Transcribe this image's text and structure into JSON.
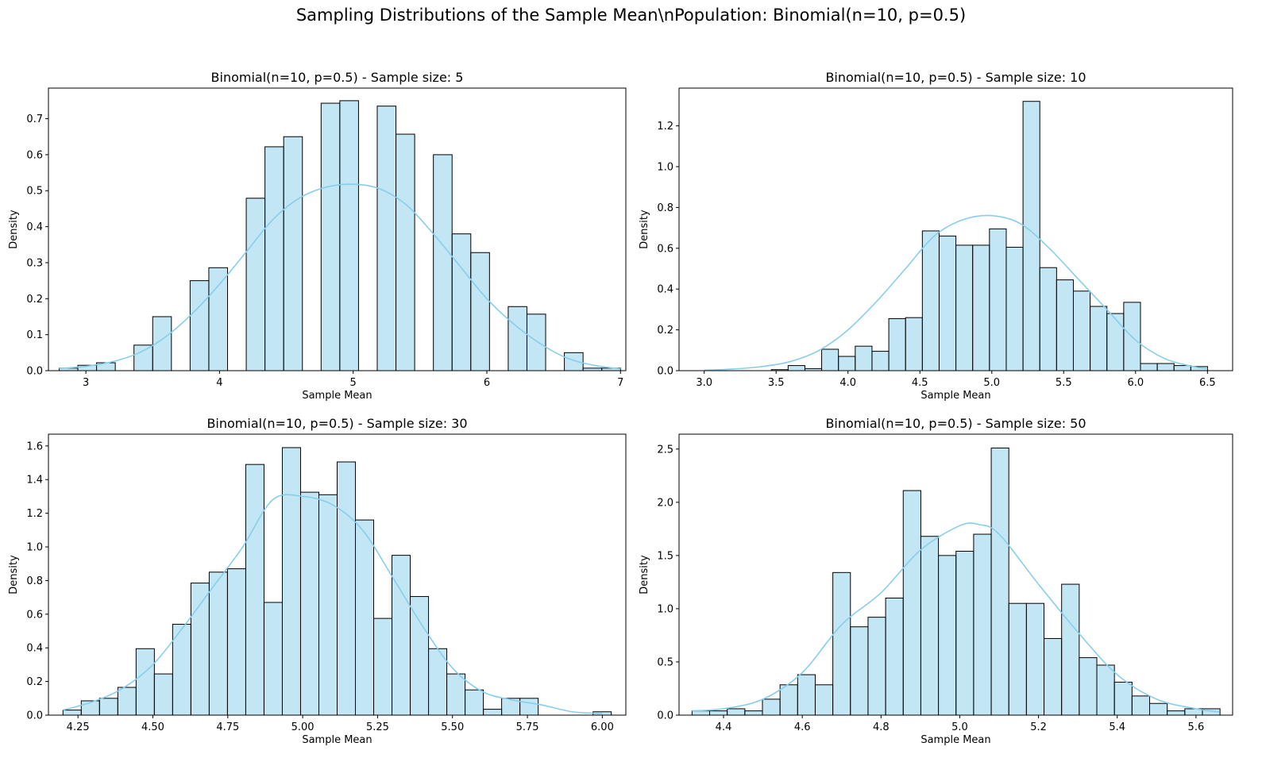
{
  "figure": {
    "suptitle": "Sampling Distributions of the Sample Mean\\nPopulation: Binomial(n=10, p=0.5)"
  },
  "chart_data": [
    {
      "type": "bar",
      "title": "Binomial(n=10, p=0.5) - Sample size: 5",
      "xlabel": "Sample Mean",
      "ylabel": "Density",
      "xlim": [
        2.72,
        7.04
      ],
      "ylim": [
        0,
        0.785
      ],
      "xticks": [
        3,
        4,
        5,
        6,
        7
      ],
      "xtick_labels": [
        "3",
        "4",
        "5",
        "6",
        "7"
      ],
      "yticks": [
        0,
        0.1,
        0.2,
        0.3,
        0.4,
        0.5,
        0.6,
        0.7
      ],
      "ytick_labels": [
        "0.0",
        "0.1",
        "0.2",
        "0.3",
        "0.4",
        "0.5",
        "0.6",
        "0.7"
      ],
      "bin_start": 2.8,
      "bin_width": 0.14,
      "densities": [
        0.007,
        0.015,
        0.022,
        0,
        0.071,
        0.15,
        0,
        0.25,
        0.286,
        0,
        0.479,
        0.622,
        0.65,
        0,
        0.743,
        0.75,
        0,
        0.735,
        0.657,
        0,
        0.6,
        0.38,
        0.328,
        0,
        0.178,
        0.157,
        0,
        0.05,
        0.007,
        0.007
      ],
      "kde_x": [
        2.8,
        3.0,
        3.2,
        3.4,
        3.6,
        3.8,
        4.0,
        4.2,
        4.4,
        4.6,
        4.8,
        5.0,
        5.2,
        5.4,
        5.6,
        5.8,
        6.0,
        6.2,
        6.4,
        6.6,
        6.8,
        7.0
      ],
      "kde_y": [
        0.006,
        0.012,
        0.025,
        0.05,
        0.095,
        0.16,
        0.24,
        0.33,
        0.42,
        0.48,
        0.51,
        0.518,
        0.505,
        0.46,
        0.38,
        0.29,
        0.2,
        0.13,
        0.075,
        0.035,
        0.015,
        0.005
      ]
    },
    {
      "type": "bar",
      "title": "Binomial(n=10, p=0.5) - Sample size: 10",
      "xlabel": "Sample Mean",
      "ylabel": "Density",
      "xlim": [
        2.825,
        6.675
      ],
      "ylim": [
        0,
        1.385
      ],
      "xticks": [
        3.0,
        3.5,
        4.0,
        4.5,
        5.0,
        5.5,
        6.0,
        6.5
      ],
      "xtick_labels": [
        "3.0",
        "3.5",
        "4.0",
        "4.5",
        "5.0",
        "5.5",
        "6.0",
        "6.5"
      ],
      "yticks": [
        0,
        0.2,
        0.4,
        0.6,
        0.8,
        1.0,
        1.2
      ],
      "ytick_labels": [
        "0.0",
        "0.2",
        "0.4",
        "0.6",
        "0.8",
        "1.0",
        "1.2"
      ],
      "bin_start": 3.0,
      "bin_width": 0.1167,
      "densities": [
        0,
        0,
        0,
        0,
        0.005,
        0.025,
        0.01,
        0.105,
        0.07,
        0.12,
        0.095,
        0.255,
        0.26,
        0.685,
        0.66,
        0.615,
        0.615,
        0.695,
        0.605,
        1.32,
        0.505,
        0.445,
        0.39,
        0.315,
        0.28,
        0.335,
        0.035,
        0.035,
        0.025,
        0.02
      ],
      "kde_x": [
        3.0,
        3.2,
        3.4,
        3.6,
        3.8,
        4.0,
        4.2,
        4.4,
        4.6,
        4.8,
        5.0,
        5.2,
        5.4,
        5.6,
        5.8,
        6.0,
        6.2,
        6.4,
        6.5
      ],
      "kde_y": [
        0.002,
        0.008,
        0.02,
        0.045,
        0.1,
        0.2,
        0.34,
        0.5,
        0.66,
        0.74,
        0.76,
        0.72,
        0.6,
        0.45,
        0.3,
        0.15,
        0.06,
        0.02,
        0.01
      ]
    },
    {
      "type": "bar",
      "title": "Binomial(n=10, p=0.5) - Sample size: 30",
      "xlabel": "Sample Mean",
      "ylabel": "Density",
      "xlim": [
        4.1515,
        6.0785
      ],
      "ylim": [
        0,
        1.67
      ],
      "xticks": [
        4.25,
        4.5,
        4.75,
        5.0,
        5.25,
        5.5,
        5.75,
        6.0
      ],
      "xtick_labels": [
        "4.25",
        "4.50",
        "4.75",
        "5.00",
        "5.25",
        "5.50",
        "5.75",
        "6.00"
      ],
      "yticks": [
        0,
        0.2,
        0.4,
        0.6,
        0.8,
        1.0,
        1.2,
        1.4,
        1.6
      ],
      "ytick_labels": [
        "0.0",
        "0.2",
        "0.4",
        "0.6",
        "0.8",
        "1.0",
        "1.2",
        "1.4",
        "1.6"
      ],
      "bin_start": 4.2,
      "bin_width": 0.061,
      "densities": [
        0.03,
        0.085,
        0.1,
        0.165,
        0.395,
        0.245,
        0.54,
        0.785,
        0.85,
        0.87,
        1.49,
        0.67,
        1.59,
        1.325,
        1.31,
        1.505,
        1.16,
        0.575,
        0.95,
        0.705,
        0.395,
        0.245,
        0.15,
        0.035,
        0.1,
        0.1,
        0,
        0,
        0,
        0.02
      ],
      "kde_x": [
        4.2,
        4.3,
        4.4,
        4.5,
        4.6,
        4.7,
        4.8,
        4.9,
        5.0,
        5.1,
        5.2,
        5.3,
        5.4,
        5.5,
        5.6,
        5.7,
        5.8,
        5.9,
        6.0
      ],
      "kde_y": [
        0.03,
        0.08,
        0.16,
        0.3,
        0.52,
        0.76,
        1.0,
        1.28,
        1.3,
        1.25,
        1.1,
        0.82,
        0.53,
        0.28,
        0.14,
        0.09,
        0.06,
        0.02,
        0.01
      ]
    },
    {
      "type": "bar",
      "title": "Binomial(n=10, p=0.5) - Sample size: 50",
      "xlabel": "Sample Mean",
      "ylabel": "Density",
      "xlim": [
        4.287,
        5.693
      ],
      "ylim": [
        0,
        2.64
      ],
      "xticks": [
        4.4,
        4.6,
        4.8,
        5.0,
        5.2,
        5.4,
        5.6
      ],
      "xtick_labels": [
        "4.4",
        "4.6",
        "4.8",
        "5.0",
        "5.2",
        "5.4",
        "5.6"
      ],
      "yticks": [
        0,
        0.5,
        1.0,
        1.5,
        2.0,
        2.5
      ],
      "ytick_labels": [
        "0.0",
        "0.5",
        "1.0",
        "1.5",
        "2.0",
        "2.5"
      ],
      "bin_start": 4.32,
      "bin_width": 0.0447,
      "densities": [
        0.04,
        0.04,
        0.06,
        0.04,
        0.15,
        0.285,
        0.38,
        0.285,
        1.34,
        0.83,
        0.92,
        1.1,
        2.11,
        1.68,
        1.5,
        1.54,
        1.7,
        2.51,
        1.05,
        1.05,
        0.72,
        1.23,
        0.54,
        0.47,
        0.31,
        0.18,
        0.11,
        0.04,
        0.06,
        0.06
      ],
      "kde_x": [
        4.32,
        4.4,
        4.5,
        4.6,
        4.7,
        4.8,
        4.9,
        5.0,
        5.05,
        5.1,
        5.2,
        5.3,
        5.4,
        5.5,
        5.6,
        5.66
      ],
      "kde_y": [
        0.04,
        0.06,
        0.15,
        0.4,
        0.85,
        1.15,
        1.55,
        1.78,
        1.79,
        1.7,
        1.23,
        0.78,
        0.38,
        0.15,
        0.06,
        0.03
      ]
    }
  ]
}
